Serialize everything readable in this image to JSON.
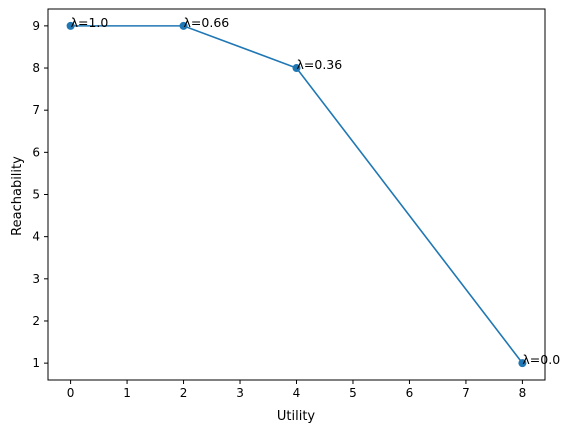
{
  "chart_data": {
    "type": "line",
    "title": "",
    "xlabel": "Utility",
    "ylabel": "Reachability",
    "xlim": [
      -0.4,
      8.4
    ],
    "ylim": [
      0.6,
      9.4
    ],
    "xticks": [
      0,
      1,
      2,
      3,
      4,
      5,
      6,
      7,
      8
    ],
    "xtick_labels": [
      "0",
      "1",
      "2",
      "3",
      "4",
      "5",
      "6",
      "7",
      "8"
    ],
    "yticks": [
      1,
      2,
      3,
      4,
      5,
      6,
      7,
      8,
      9
    ],
    "ytick_labels": [
      "1",
      "2",
      "3",
      "4",
      "5",
      "6",
      "7",
      "8",
      "9"
    ],
    "grid": false,
    "series": [
      {
        "x": [
          0,
          2,
          4,
          8
        ],
        "y": [
          9,
          9,
          8,
          1
        ],
        "color": "#1f77b4",
        "markers": true
      }
    ],
    "annotations": [
      {
        "text": "λ=1.0",
        "x": 0,
        "y": 9
      },
      {
        "text": "λ=0.66",
        "x": 2,
        "y": 9
      },
      {
        "text": "λ=0.36",
        "x": 4,
        "y": 8
      },
      {
        "text": "λ=0.0",
        "x": 8,
        "y": 1
      }
    ]
  }
}
